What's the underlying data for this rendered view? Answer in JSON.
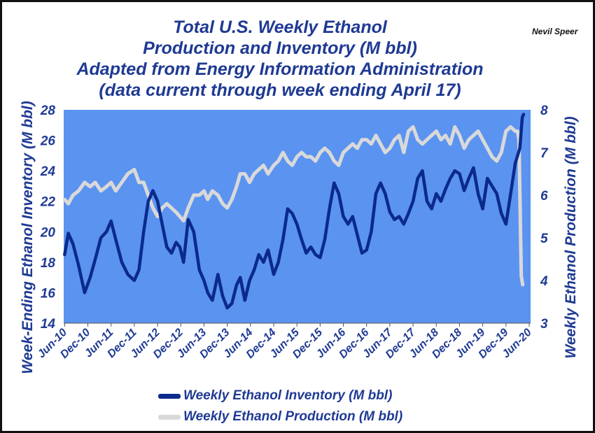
{
  "title_lines": [
    "Total U.S. Weekly Ethanol",
    "Production and Inventory (M bbl)",
    "Adapted from Energy Information Administration",
    "(data current through week ending April 17)"
  ],
  "author": "Nevil Speer",
  "colors": {
    "plot_bg": "#5b93f0",
    "inventory": "#0b2a8c",
    "production": "#d9d9d9",
    "text": "#1f3a93"
  },
  "chart_data": {
    "type": "line",
    "title": "Total U.S. Weekly Ethanol Production and Inventory (M bbl)",
    "ylabel": "Week-Ending Ethanol Inventory (M bbl)",
    "y2label": "Weekly Ethanol Production (M bbl)",
    "ylim": [
      14,
      28
    ],
    "y_ticks": [
      14,
      16,
      18,
      20,
      22,
      24,
      26,
      28
    ],
    "y2lim": [
      3,
      8
    ],
    "y2_ticks": [
      3,
      4,
      5,
      6,
      7,
      8
    ],
    "xlim": [
      2010.4,
      2020.45
    ],
    "x_tick_labels": [
      "Jun-10",
      "Dec-10",
      "Jun-11",
      "Dec-11",
      "Jun-12",
      "Dec-12",
      "Jun-13",
      "Dec-13",
      "Jun-14",
      "Dec-14",
      "Jun-15",
      "Dec-15",
      "Jun-16",
      "Dec-16",
      "Jun-17",
      "Dec-17",
      "Jun-18",
      "Dec-18",
      "Jun-19",
      "Dec-19",
      "Jun-20"
    ],
    "x_tick_values": [
      2010.42,
      2010.92,
      2011.42,
      2011.92,
      2012.42,
      2012.92,
      2013.42,
      2013.92,
      2014.42,
      2014.92,
      2015.42,
      2015.92,
      2016.42,
      2016.92,
      2017.42,
      2017.92,
      2018.42,
      2018.92,
      2019.42,
      2019.92,
      2020.42
    ],
    "grid": false,
    "legend_position": "bottom",
    "series": [
      {
        "name": "Weekly Ethanol Inventory (M bbl)",
        "axis": "left",
        "color": "#0b2a8c",
        "x": [
          2010.42,
          2010.5,
          2010.6,
          2010.72,
          2010.85,
          2010.97,
          2011.08,
          2011.2,
          2011.32,
          2011.42,
          2011.52,
          2011.65,
          2011.78,
          2011.92,
          2012.02,
          2012.12,
          2012.22,
          2012.32,
          2012.42,
          2012.52,
          2012.62,
          2012.72,
          2012.82,
          2012.9,
          2012.98,
          2013.08,
          2013.2,
          2013.32,
          2013.42,
          2013.5,
          2013.6,
          2013.72,
          2013.82,
          2013.92,
          2014.02,
          2014.12,
          2014.2,
          2014.3,
          2014.4,
          2014.5,
          2014.6,
          2014.7,
          2014.8,
          2014.92,
          2015.02,
          2015.12,
          2015.22,
          2015.32,
          2015.42,
          2015.52,
          2015.62,
          2015.72,
          2015.82,
          2015.92,
          2016.02,
          2016.12,
          2016.22,
          2016.32,
          2016.42,
          2016.52,
          2016.62,
          2016.72,
          2016.82,
          2016.92,
          2017.02,
          2017.12,
          2017.22,
          2017.32,
          2017.42,
          2017.52,
          2017.62,
          2017.72,
          2017.82,
          2017.92,
          2018.02,
          2018.12,
          2018.22,
          2018.32,
          2018.42,
          2018.52,
          2018.62,
          2018.72,
          2018.82,
          2018.92,
          2019.02,
          2019.12,
          2019.22,
          2019.32,
          2019.42,
          2019.52,
          2019.62,
          2019.72,
          2019.82,
          2019.92,
          2020.02,
          2020.12,
          2020.22,
          2020.27,
          2020.3
        ],
        "values": [
          18.5,
          19.9,
          19.2,
          17.8,
          16.0,
          17.0,
          18.2,
          19.6,
          20.0,
          20.7,
          19.5,
          18.0,
          17.2,
          16.8,
          17.5,
          20.0,
          22.0,
          22.7,
          22.0,
          20.5,
          19.0,
          18.6,
          19.3,
          19.0,
          18.0,
          20.8,
          20.0,
          17.5,
          16.8,
          16.0,
          15.5,
          17.2,
          15.8,
          15.0,
          15.3,
          16.5,
          17.0,
          15.5,
          16.8,
          17.5,
          18.5,
          18.0,
          18.8,
          17.2,
          18.0,
          19.5,
          21.5,
          21.2,
          20.5,
          19.5,
          18.6,
          19.0,
          18.5,
          18.3,
          19.5,
          21.5,
          23.2,
          22.5,
          21.0,
          20.5,
          21.0,
          19.8,
          18.6,
          18.8,
          20.0,
          22.5,
          23.2,
          22.5,
          21.3,
          20.8,
          21.0,
          20.5,
          21.2,
          22.0,
          23.5,
          24.0,
          22.0,
          21.5,
          22.5,
          22.0,
          22.8,
          23.5,
          24.0,
          23.8,
          22.7,
          23.5,
          24.2,
          22.5,
          21.5,
          23.5,
          23.0,
          22.5,
          21.2,
          20.5,
          22.5,
          24.5,
          25.5,
          27.5,
          27.7
        ]
      },
      {
        "name": "Weekly Ethanol Production (M bbl)",
        "axis": "right",
        "color": "#d9d9d9",
        "x": [
          2010.42,
          2010.5,
          2010.6,
          2010.72,
          2010.85,
          2010.97,
          2011.08,
          2011.2,
          2011.32,
          2011.42,
          2011.52,
          2011.65,
          2011.78,
          2011.92,
          2012.02,
          2012.12,
          2012.22,
          2012.32,
          2012.42,
          2012.52,
          2012.62,
          2012.72,
          2012.82,
          2012.9,
          2012.98,
          2013.08,
          2013.2,
          2013.32,
          2013.42,
          2013.5,
          2013.6,
          2013.72,
          2013.82,
          2013.92,
          2014.02,
          2014.12,
          2014.2,
          2014.3,
          2014.4,
          2014.5,
          2014.6,
          2014.7,
          2014.8,
          2014.92,
          2015.02,
          2015.12,
          2015.22,
          2015.32,
          2015.42,
          2015.52,
          2015.62,
          2015.72,
          2015.82,
          2015.92,
          2016.02,
          2016.12,
          2016.22,
          2016.32,
          2016.42,
          2016.52,
          2016.62,
          2016.72,
          2016.82,
          2016.92,
          2017.02,
          2017.12,
          2017.22,
          2017.32,
          2017.42,
          2017.52,
          2017.62,
          2017.72,
          2017.82,
          2017.92,
          2018.02,
          2018.12,
          2018.22,
          2018.32,
          2018.42,
          2018.52,
          2018.62,
          2018.72,
          2018.82,
          2018.92,
          2019.02,
          2019.12,
          2019.22,
          2019.32,
          2019.42,
          2019.52,
          2019.62,
          2019.72,
          2019.82,
          2019.92,
          2020.02,
          2020.12,
          2020.17,
          2020.2,
          2020.22,
          2020.25,
          2020.28
        ],
        "values": [
          5.9,
          5.8,
          6.0,
          6.1,
          6.3,
          6.2,
          6.3,
          6.1,
          6.2,
          6.3,
          6.1,
          6.3,
          6.5,
          6.6,
          6.3,
          6.3,
          6.0,
          5.7,
          5.5,
          5.7,
          5.8,
          5.7,
          5.6,
          5.5,
          5.4,
          5.7,
          6.0,
          6.0,
          6.1,
          5.9,
          6.1,
          6.0,
          5.8,
          5.7,
          5.9,
          6.2,
          6.5,
          6.5,
          6.3,
          6.5,
          6.6,
          6.7,
          6.5,
          6.7,
          6.8,
          7.0,
          6.8,
          6.7,
          6.9,
          7.0,
          6.9,
          6.9,
          6.8,
          7.0,
          7.1,
          7.0,
          6.8,
          6.7,
          7.0,
          7.1,
          7.2,
          7.1,
          7.3,
          7.3,
          7.2,
          7.4,
          7.2,
          7.0,
          7.1,
          7.3,
          7.4,
          7.0,
          7.5,
          7.6,
          7.3,
          7.2,
          7.3,
          7.4,
          7.5,
          7.3,
          7.4,
          7.2,
          7.6,
          7.4,
          7.1,
          7.3,
          7.4,
          7.5,
          7.3,
          7.1,
          6.9,
          6.8,
          7.0,
          7.5,
          7.6,
          7.5,
          7.5,
          7.3,
          6.0,
          4.1,
          3.9
        ]
      }
    ]
  }
}
